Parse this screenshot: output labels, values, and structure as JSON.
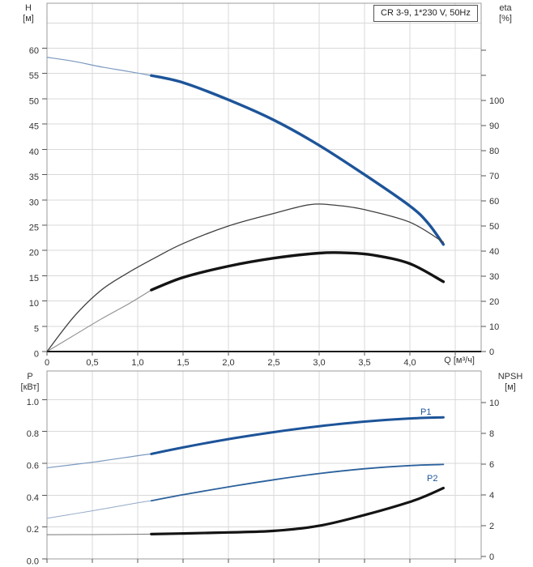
{
  "title_box": "CR 3-9, 1*230 V, 50Hz",
  "palette": {
    "grid_color": "#d9d9d9",
    "frame_color": "#9b9b9b",
    "tick_color": "#555555",
    "text_color": "#333333",
    "baseline_color": "#1a1a1a",
    "brand_blue": "#1d5499"
  },
  "chart_data": [
    {
      "id": "hq",
      "type": "line",
      "title": "CR 3-9, 1*230 V, 50Hz",
      "x_axis": {
        "title": "Q [м³/ч]",
        "min": 0,
        "max": 4.786,
        "show_labels": true,
        "baseline": true,
        "ticks": [
          {
            "v": 0,
            "label": "0"
          },
          {
            "v": 0.5,
            "label": "0,5"
          },
          {
            "v": 1.0,
            "label": "1,0"
          },
          {
            "v": 1.5,
            "label": "1,5"
          },
          {
            "v": 2.0,
            "label": "2,0"
          },
          {
            "v": 2.5,
            "label": "2,5"
          },
          {
            "v": 3.0,
            "label": "3,0"
          },
          {
            "v": 3.5,
            "label": "3,5"
          },
          {
            "v": 4.0,
            "label": "4,0"
          },
          {
            "v": 4.5
          }
        ]
      },
      "left_axis": {
        "title": "H",
        "unit": "[м]",
        "v_bottom": 0,
        "v_top": 68.9,
        "grid": [
          5,
          10,
          15,
          20,
          25,
          30,
          35,
          40,
          45,
          50,
          55,
          60,
          65
        ],
        "ticks": [
          {
            "v": 0,
            "label": "0"
          },
          {
            "v": 5,
            "label": "5"
          },
          {
            "v": 10,
            "label": "10"
          },
          {
            "v": 15,
            "label": "15"
          },
          {
            "v": 20,
            "label": "20"
          },
          {
            "v": 25,
            "label": "25"
          },
          {
            "v": 30,
            "label": "30"
          },
          {
            "v": 35,
            "label": "35"
          },
          {
            "v": 40,
            "label": "40"
          },
          {
            "v": 45,
            "label": "45"
          },
          {
            "v": 50,
            "label": "50"
          },
          {
            "v": 55,
            "label": "55"
          },
          {
            "v": 60,
            "label": "60"
          }
        ]
      },
      "right_axis": {
        "title": "eta",
        "unit": "[%]",
        "v_bottom": 0,
        "v_top": 138.7,
        "ticks": [
          {
            "v": 0,
            "label": "0"
          },
          {
            "v": 10,
            "label": "10"
          },
          {
            "v": 20,
            "label": "20"
          },
          {
            "v": 30,
            "label": "30"
          },
          {
            "v": 40,
            "label": "40"
          },
          {
            "v": 50,
            "label": "50"
          },
          {
            "v": 60,
            "label": "60"
          },
          {
            "v": 70,
            "label": "70"
          },
          {
            "v": 80,
            "label": "80"
          },
          {
            "v": 90,
            "label": "90"
          },
          {
            "v": 100,
            "label": "100"
          },
          {
            "v": 110
          },
          {
            "v": 120
          }
        ]
      },
      "series": [
        {
          "name": "H",
          "axis": "left",
          "color": "#1d5499",
          "width": 3.4,
          "thin_until": 1.15,
          "thin_color": "#7b99c0",
          "thin_width": 1.2,
          "points": [
            [
              0,
              58.2
            ],
            [
              0.3,
              57.4
            ],
            [
              0.6,
              56.3
            ],
            [
              0.9,
              55.4
            ],
            [
              1.15,
              54.6
            ],
            [
              1.5,
              53.2
            ],
            [
              2.0,
              49.8
            ],
            [
              2.5,
              45.8
            ],
            [
              3.0,
              40.8
            ],
            [
              3.5,
              35.0
            ],
            [
              4.0,
              28.8
            ],
            [
              4.2,
              25.4
            ],
            [
              4.37,
              21.2
            ]
          ]
        },
        {
          "name": "eta",
          "axis": "right",
          "color": "#3f3f3f",
          "width": 1.3,
          "points": [
            [
              0,
              0
            ],
            [
              0.3,
              14
            ],
            [
              0.6,
              24.5
            ],
            [
              0.9,
              31.5
            ],
            [
              1.2,
              37.5
            ],
            [
              1.5,
              43
            ],
            [
              2.0,
              50
            ],
            [
              2.5,
              55
            ],
            [
              2.9,
              58.5
            ],
            [
              3.2,
              58.2
            ],
            [
              3.5,
              56.5
            ],
            [
              4.0,
              51.5
            ],
            [
              4.37,
              43.5
            ]
          ]
        },
        {
          "name": "eta-total",
          "axis": "right",
          "color": "#141414",
          "width": 3.4,
          "thin_until": 1.15,
          "thin_color": "#8f8f8f",
          "thin_width": 1.1,
          "points": [
            [
              0,
              0
            ],
            [
              0.3,
              6.5
            ],
            [
              0.6,
              13
            ],
            [
              0.9,
              19
            ],
            [
              1.15,
              24.5
            ],
            [
              1.5,
              29.5
            ],
            [
              2.0,
              34
            ],
            [
              2.5,
              37.2
            ],
            [
              3.0,
              39.2
            ],
            [
              3.3,
              39.3
            ],
            [
              3.6,
              38.4
            ],
            [
              4.0,
              35
            ],
            [
              4.37,
              27.8
            ]
          ]
        }
      ]
    },
    {
      "id": "p-npsh",
      "type": "line",
      "x_axis": {
        "min": 0,
        "max": 4.786,
        "show_labels": false,
        "baseline": false,
        "ticks": [
          {
            "v": 0
          },
          {
            "v": 0.5
          },
          {
            "v": 1.0
          },
          {
            "v": 1.5
          },
          {
            "v": 2.0
          },
          {
            "v": 2.5
          },
          {
            "v": 3.0
          },
          {
            "v": 3.5
          },
          {
            "v": 4.0
          },
          {
            "v": 4.5
          }
        ]
      },
      "left_axis": {
        "title": "P",
        "unit": "[кВт]",
        "v_bottom": 0,
        "v_top": 1.18,
        "grid": [
          0.2,
          0.4,
          0.6,
          0.8,
          1.0
        ],
        "ticks": [
          {
            "v": 0,
            "label": "0.0"
          },
          {
            "v": 0.2,
            "label": "0.2"
          },
          {
            "v": 0.4,
            "label": "0.4"
          },
          {
            "v": 0.6,
            "label": "0.6"
          },
          {
            "v": 0.8,
            "label": "0.8"
          },
          {
            "v": 1.0,
            "label": "1.0"
          }
        ]
      },
      "right_axis": {
        "title": "NPSH",
        "unit": "[м]",
        "v_bottom": -0.15,
        "v_top": 12.05,
        "ticks": [
          {
            "v": 0,
            "label": "0"
          },
          {
            "v": 2,
            "label": "2"
          },
          {
            "v": 4,
            "label": "4"
          },
          {
            "v": 6,
            "label": "6"
          },
          {
            "v": 8,
            "label": "8"
          },
          {
            "v": 10,
            "label": "10"
          }
        ]
      },
      "series": [
        {
          "name": "P1",
          "axis": "left",
          "label": "P1",
          "label_pos": [
            519,
            512
          ],
          "color": "#1d5499",
          "width": 3.0,
          "thin_until": 1.15,
          "thin_color": "#7b99c0",
          "thin_width": 1.2,
          "points": [
            [
              0,
              0.572
            ],
            [
              0.5,
              0.607
            ],
            [
              1.0,
              0.648
            ],
            [
              1.15,
              0.659
            ],
            [
              1.5,
              0.7
            ],
            [
              2.0,
              0.752
            ],
            [
              2.5,
              0.796
            ],
            [
              3.0,
              0.833
            ],
            [
              3.5,
              0.862
            ],
            [
              4.0,
              0.882
            ],
            [
              4.37,
              0.889
            ]
          ]
        },
        {
          "name": "P2",
          "axis": "left",
          "label": "P2",
          "label_pos": [
            527,
            594
          ],
          "color": "#2b619c",
          "width": 1.8,
          "thin_until": 1.15,
          "thin_color": "#93a9c7",
          "thin_width": 1.0,
          "points": [
            [
              0,
              0.255
            ],
            [
              0.5,
              0.302
            ],
            [
              1.0,
              0.352
            ],
            [
              1.15,
              0.365
            ],
            [
              1.5,
              0.403
            ],
            [
              2.0,
              0.452
            ],
            [
              2.5,
              0.497
            ],
            [
              3.0,
              0.536
            ],
            [
              3.5,
              0.566
            ],
            [
              4.0,
              0.586
            ],
            [
              4.37,
              0.593
            ]
          ]
        },
        {
          "name": "NPSH",
          "axis": "right",
          "color": "#141414",
          "width": 3.2,
          "thin_until": 1.15,
          "thin_color": "#777777",
          "thin_width": 1.0,
          "points": [
            [
              0,
              1.42
            ],
            [
              0.5,
              1.43
            ],
            [
              1.0,
              1.45
            ],
            [
              1.15,
              1.46
            ],
            [
              1.5,
              1.5
            ],
            [
              2.0,
              1.57
            ],
            [
              2.5,
              1.67
            ],
            [
              3.0,
              2.0
            ],
            [
              3.5,
              2.7
            ],
            [
              4.0,
              3.55
            ],
            [
              4.2,
              4.0
            ],
            [
              4.37,
              4.45
            ]
          ]
        }
      ]
    }
  ]
}
